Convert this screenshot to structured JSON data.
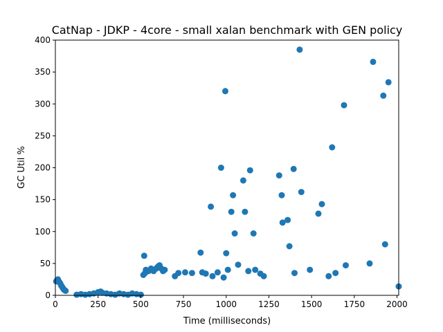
{
  "chart_data": {
    "type": "scatter",
    "title": "CatNap - JDKP - 4core -  small xalan benchmark with GEN policy",
    "xlabel": "Time (milliseconds)",
    "ylabel": "GC Util %",
    "xlim": [
      0,
      2010
    ],
    "ylim": [
      0,
      400
    ],
    "x_ticks": [
      0,
      250,
      500,
      750,
      1000,
      1250,
      1500,
      1750,
      2000
    ],
    "y_ticks": [
      0,
      50,
      100,
      150,
      200,
      250,
      300,
      350,
      400
    ],
    "grid": false,
    "marker_color": "#1f77b4",
    "series": [
      {
        "values": [
          [
            5,
            22
          ],
          [
            10,
            24
          ],
          [
            15,
            25
          ],
          [
            20,
            22
          ],
          [
            25,
            20
          ],
          [
            30,
            18
          ],
          [
            35,
            15
          ],
          [
            40,
            13
          ],
          [
            45,
            11
          ],
          [
            50,
            9
          ],
          [
            55,
            8
          ],
          [
            60,
            7
          ],
          [
            125,
            1
          ],
          [
            150,
            2
          ],
          [
            175,
            1
          ],
          [
            200,
            2
          ],
          [
            225,
            3
          ],
          [
            250,
            5
          ],
          [
            265,
            6
          ],
          [
            275,
            4
          ],
          [
            300,
            3
          ],
          [
            325,
            2
          ],
          [
            350,
            1
          ],
          [
            375,
            3
          ],
          [
            400,
            2
          ],
          [
            425,
            1
          ],
          [
            450,
            3
          ],
          [
            475,
            2
          ],
          [
            500,
            1
          ],
          [
            515,
            32
          ],
          [
            520,
            62
          ],
          [
            525,
            35
          ],
          [
            530,
            40
          ],
          [
            545,
            38
          ],
          [
            560,
            42
          ],
          [
            575,
            38
          ],
          [
            590,
            42
          ],
          [
            600,
            45
          ],
          [
            610,
            47
          ],
          [
            620,
            42
          ],
          [
            630,
            38
          ],
          [
            640,
            40
          ],
          [
            700,
            30
          ],
          [
            720,
            35
          ],
          [
            760,
            36
          ],
          [
            800,
            35
          ],
          [
            850,
            67
          ],
          [
            860,
            36
          ],
          [
            880,
            34
          ],
          [
            910,
            139
          ],
          [
            920,
            30
          ],
          [
            950,
            36
          ],
          [
            970,
            200
          ],
          [
            985,
            28
          ],
          [
            995,
            320
          ],
          [
            1000,
            66
          ],
          [
            1010,
            40
          ],
          [
            1030,
            131
          ],
          [
            1040,
            157
          ],
          [
            1050,
            97
          ],
          [
            1070,
            48
          ],
          [
            1100,
            180
          ],
          [
            1110,
            131
          ],
          [
            1130,
            38
          ],
          [
            1140,
            196
          ],
          [
            1160,
            97
          ],
          [
            1170,
            40
          ],
          [
            1200,
            34
          ],
          [
            1220,
            30
          ],
          [
            1310,
            188
          ],
          [
            1325,
            157
          ],
          [
            1330,
            114
          ],
          [
            1360,
            118
          ],
          [
            1370,
            77
          ],
          [
            1395,
            198
          ],
          [
            1400,
            35
          ],
          [
            1430,
            385
          ],
          [
            1440,
            162
          ],
          [
            1490,
            40
          ],
          [
            1540,
            128
          ],
          [
            1560,
            143
          ],
          [
            1600,
            30
          ],
          [
            1620,
            232
          ],
          [
            1640,
            35
          ],
          [
            1690,
            298
          ],
          [
            1700,
            47
          ],
          [
            1840,
            50
          ],
          [
            1860,
            366
          ],
          [
            1920,
            313
          ],
          [
            1930,
            80
          ],
          [
            1950,
            334
          ],
          [
            2010,
            14
          ]
        ]
      }
    ]
  }
}
